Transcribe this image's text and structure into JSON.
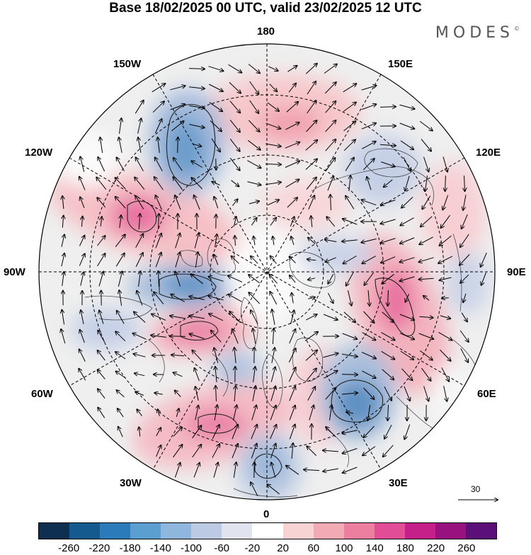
{
  "title": "Base 18/02/2025 00 UTC, valid 23/02/2025 12 UTC",
  "brand": "MODES",
  "brand_mark": "©",
  "longitude_labels": {
    "lon_180": "180",
    "lon_150e": "150E",
    "lon_120e": "120E",
    "lon_90e": "90E",
    "lon_60e": "60E",
    "lon_30e": "30E",
    "lon_0": "0",
    "lon_30w": "30W",
    "lon_60w": "60W",
    "lon_90w": "90W",
    "lon_120w": "120W",
    "lon_150w": "150W"
  },
  "reference_vector": {
    "value": "30"
  },
  "colorbar": {
    "colors": [
      "#0e2f4f",
      "#155a8e",
      "#2b7bba",
      "#5a9fcf",
      "#8fb6dc",
      "#bccbe3",
      "#e1e3ef",
      "#ffffff",
      "#f8d3d3",
      "#f2aab4",
      "#ec7ea0",
      "#e24d97",
      "#c51f8a",
      "#98117f",
      "#5c0f78"
    ],
    "ticks": [
      "-260",
      "-220",
      "-180",
      "-140",
      "-100",
      "-60",
      "-20",
      "20",
      "60",
      "100",
      "140",
      "180",
      "220",
      "260"
    ]
  },
  "anomaly_features": [
    {
      "sign": "negative",
      "level": 140,
      "location": "Alaska / 150W-120W"
    },
    {
      "sign": "positive",
      "level": 140,
      "location": "Canada 110W"
    },
    {
      "sign": "negative",
      "level": 180,
      "location": "Hudson Bay / 90W"
    },
    {
      "sign": "positive",
      "level": 140,
      "location": "Labrador Sea 60W"
    },
    {
      "sign": "positive",
      "level": 140,
      "location": "North Atlantic 30W"
    },
    {
      "sign": "negative",
      "level": 100,
      "location": "Western Europe 0"
    },
    {
      "sign": "negative",
      "level": 180,
      "location": "Eastern Europe 40E"
    },
    {
      "sign": "positive",
      "level": 140,
      "location": "Siberia 80E"
    },
    {
      "sign": "positive",
      "level": 100,
      "location": "East Siberian Sea 180"
    },
    {
      "sign": "negative",
      "level": 60,
      "location": "Siberia 120E"
    }
  ]
}
